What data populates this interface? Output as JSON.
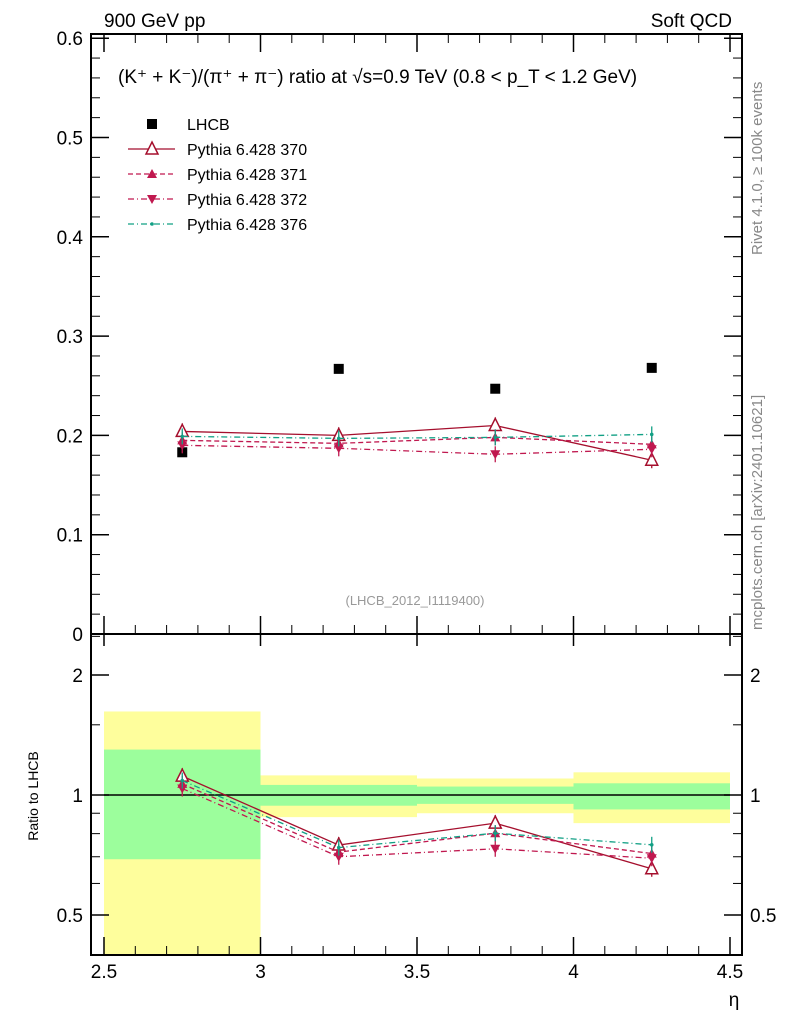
{
  "header": {
    "left": "900 GeV pp",
    "right": "Soft QCD"
  },
  "side_labels": {
    "top": "Rivet 4.1.0, ≥ 100k events",
    "bottom": "mcplots.cern.ch [arXiv:2401.10621]"
  },
  "chart_data": [
    {
      "type": "scatter",
      "title": "(K⁺ + K⁻)/(π⁺ + π⁻) ratio at √s=0.9 TeV (0.8 < p_T < 1.2 GeV)",
      "analysis_id": "(LHCB_2012_I1119400)",
      "xlabel": "η",
      "ylabel": "",
      "xlim": [
        2.5,
        4.5
      ],
      "ylim": [
        0,
        0.6
      ],
      "yticks": [
        "0",
        "0.1",
        "0.2",
        "0.3",
        "0.4",
        "0.5",
        "0.6"
      ],
      "x": [
        2.75,
        3.25,
        3.75,
        4.25
      ],
      "legend_position": "top-left",
      "series": [
        {
          "name": "LHCB",
          "values": [
            0.183,
            0.267,
            0.247,
            0.268
          ],
          "color": "#000000",
          "marker": "square",
          "line": "none"
        },
        {
          "name": "Pythia 6.428 370",
          "values": [
            0.204,
            0.2,
            0.21,
            0.175
          ],
          "color": "#a50f2d",
          "marker": "open-triangle-up",
          "line": "solid"
        },
        {
          "name": "Pythia 6.428 371",
          "values": [
            0.195,
            0.192,
            0.198,
            0.191
          ],
          "color": "#c0184f",
          "marker": "triangle-up",
          "line": "dashed"
        },
        {
          "name": "Pythia 6.428 372",
          "values": [
            0.19,
            0.187,
            0.181,
            0.186
          ],
          "color": "#c0184f",
          "marker": "triangle-down",
          "line": "dashdot"
        },
        {
          "name": "Pythia 6.428 376",
          "values": [
            0.199,
            0.197,
            0.198,
            0.201
          ],
          "color": "#12a085",
          "marker": "dot",
          "line": "dashdot"
        }
      ]
    },
    {
      "type": "line",
      "ylabel": "Ratio to LHCB",
      "xlabel": "η",
      "yscale": "log",
      "ylim": [
        0.4,
        2.5
      ],
      "xlim": [
        2.5,
        4.5
      ],
      "yticks": [
        "0.5",
        "1",
        "2"
      ],
      "xticks": [
        "2.5",
        "3",
        "3.5",
        "4",
        "4.5"
      ],
      "bins": [
        [
          2.5,
          3
        ],
        [
          3,
          3.5
        ],
        [
          3.5,
          4
        ],
        [
          4,
          4.5
        ]
      ],
      "band_1sigma": [
        [
          0.69,
          1.3
        ],
        [
          0.94,
          1.06
        ],
        [
          0.95,
          1.05
        ],
        [
          0.92,
          1.07
        ]
      ],
      "band_2sigma": [
        [
          0.35,
          1.62
        ],
        [
          0.88,
          1.12
        ],
        [
          0.9,
          1.1
        ],
        [
          0.85,
          1.14
        ]
      ],
      "band_colors": {
        "inner": "#9cfe9c",
        "outer": "#fefe9c"
      },
      "series": [
        {
          "name": "Pythia 6.428 370",
          "values": [
            1.115,
            0.749,
            0.85,
            0.653
          ]
        },
        {
          "name": "Pythia 6.428 371",
          "values": [
            1.066,
            0.719,
            0.802,
            0.713
          ]
        },
        {
          "name": "Pythia 6.428 372",
          "values": [
            1.038,
            0.7,
            0.733,
            0.694
          ]
        },
        {
          "name": "Pythia 6.428 376",
          "values": [
            1.087,
            0.738,
            0.802,
            0.75
          ]
        }
      ]
    }
  ]
}
